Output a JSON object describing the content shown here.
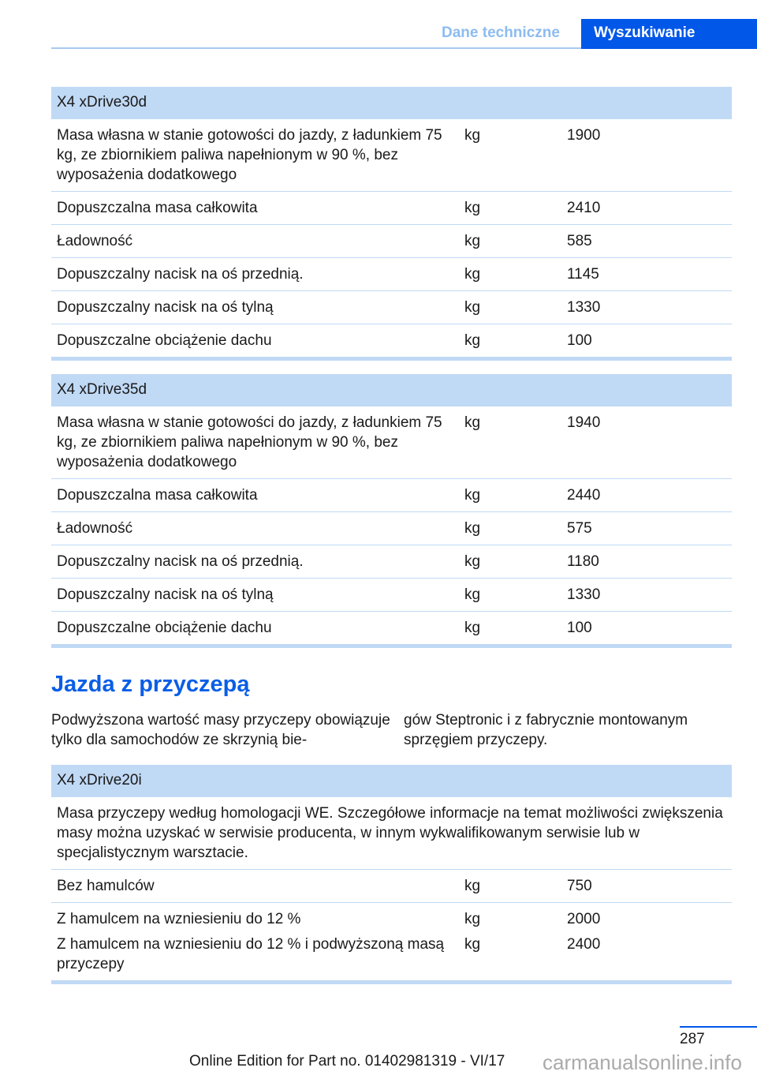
{
  "header": {
    "tab_section": "Dane techniczne",
    "tab_active": "Wyszukiwanie"
  },
  "tables": [
    {
      "title": "X4 xDrive30d",
      "rows": [
        {
          "label": "Masa własna w stanie gotowości do jazdy, z ładunkiem 75 kg, ze zbiornikiem paliwa napełnionym w 90 %, bez wyposażenia dodatkowego",
          "unit": "kg",
          "value": "1900"
        },
        {
          "label": "Dopuszczalna masa całkowita",
          "unit": "kg",
          "value": "2410"
        },
        {
          "label": "Ładowność",
          "unit": "kg",
          "value": "585"
        },
        {
          "label": "Dopuszczalny nacisk na oś przednią.",
          "unit": "kg",
          "value": "1145"
        },
        {
          "label": "Dopuszczalny nacisk na oś tylną",
          "unit": "kg",
          "value": "1330"
        },
        {
          "label": "Dopuszczalne obciążenie dachu",
          "unit": "kg",
          "value": "100"
        }
      ]
    },
    {
      "title": "X4 xDrive35d",
      "rows": [
        {
          "label": "Masa własna w stanie gotowości do jazdy, z ładunkiem 75 kg, ze zbiornikiem paliwa napełnionym w 90 %, bez wyposażenia dodatkowego",
          "unit": "kg",
          "value": "1940"
        },
        {
          "label": "Dopuszczalna masa całkowita",
          "unit": "kg",
          "value": "2440"
        },
        {
          "label": "Ładowność",
          "unit": "kg",
          "value": "575"
        },
        {
          "label": "Dopuszczalny nacisk na oś przednią.",
          "unit": "kg",
          "value": "1180"
        },
        {
          "label": "Dopuszczalny nacisk na oś tylną",
          "unit": "kg",
          "value": "1330"
        },
        {
          "label": "Dopuszczalne obciążenie dachu",
          "unit": "kg",
          "value": "100"
        }
      ]
    }
  ],
  "trailer": {
    "heading": "Jazda z przyczepą",
    "para_left": "Podwyższona wartość masy przyczepy obo­wiązuje tylko dla samochodów ze skrzynią bie-",
    "para_right": "gów Steptronic i z fabrycznie montowanym sprzęgiem przyczepy.",
    "table": {
      "title": "X4 xDrive20i",
      "note": "Masa przyczepy według homologacji WE. Szczegółowe informacje na temat możliwości zwięk­szenia masy można uzyskać w serwisie producenta, w innym wykwalifikowanym serwisie lub w specjalistycznym warsztacie.",
      "rows": [
        {
          "label": "Bez hamulców",
          "unit": "kg",
          "value": "750"
        },
        {
          "label": "Z hamulcem na wzniesieniu do 12 %",
          "unit": "kg",
          "value": "2000",
          "label2": "Z hamulcem na wzniesieniu do 12 % i podwyższoną masą przyczepy",
          "unit2": "kg",
          "value2": "2400"
        }
      ]
    }
  },
  "footer": {
    "page_number": "287",
    "edition": "Online Edition for Part no. 01402981319 - VI/17",
    "watermark": "carmanualsonline.info"
  }
}
